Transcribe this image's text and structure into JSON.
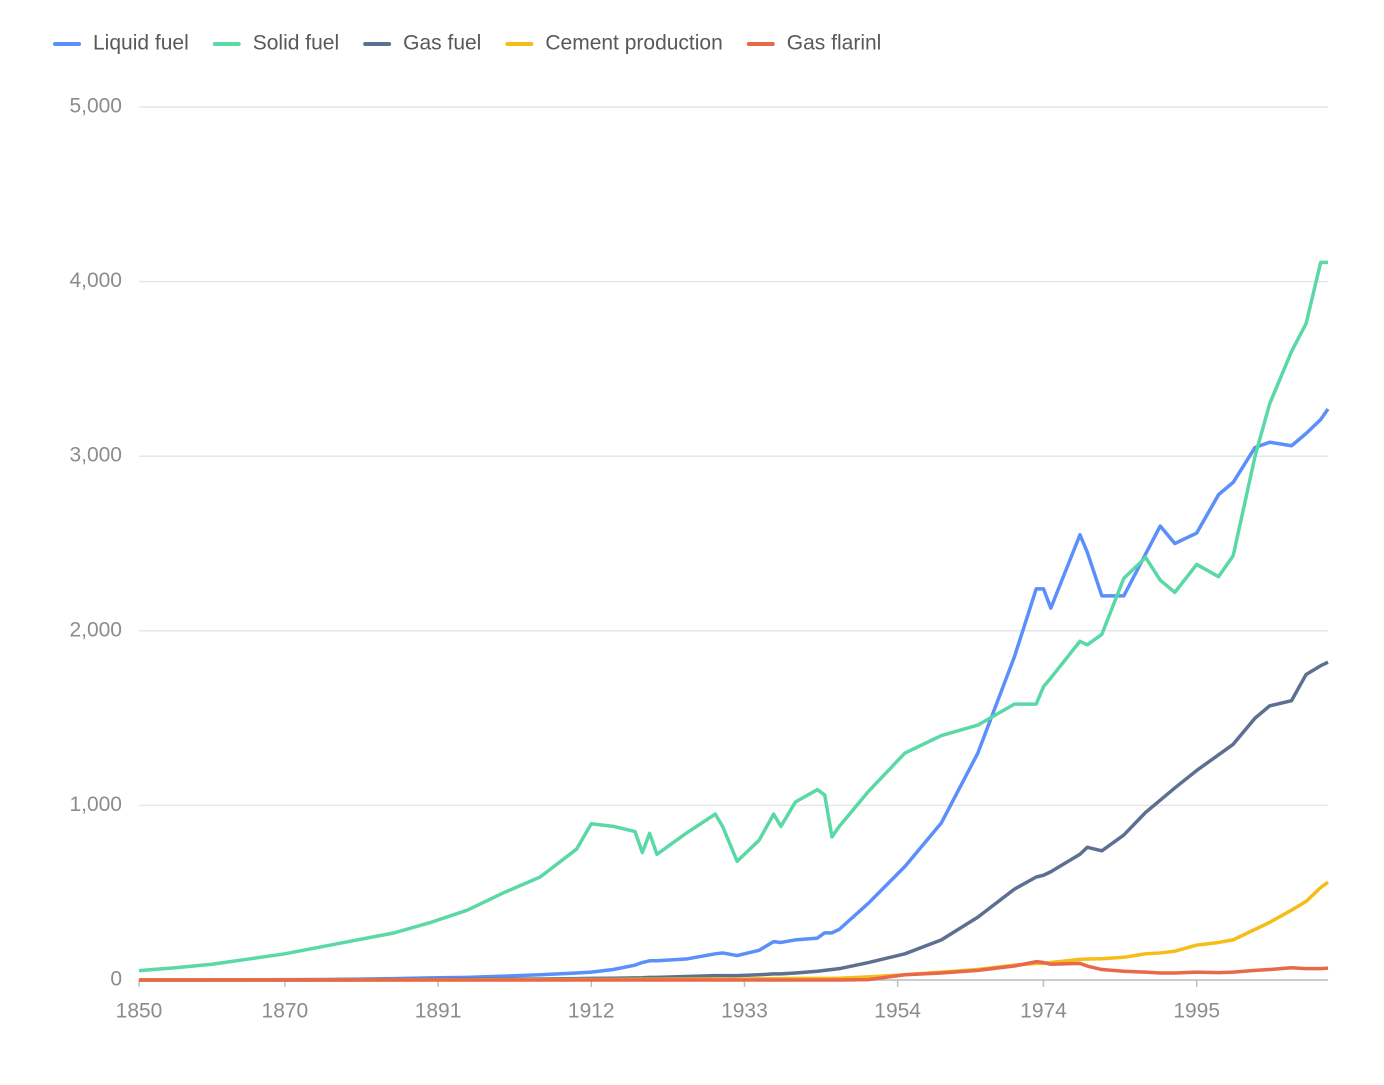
{
  "chart_data": {
    "type": "line",
    "x": [
      1850,
      1855,
      1860,
      1865,
      1870,
      1875,
      1880,
      1885,
      1890,
      1895,
      1900,
      1905,
      1910,
      1912,
      1915,
      1918,
      1919,
      1920,
      1921,
      1925,
      1929,
      1930,
      1932,
      1935,
      1937,
      1938,
      1940,
      1943,
      1944,
      1945,
      1946,
      1950,
      1955,
      1960,
      1965,
      1970,
      1973,
      1974,
      1975,
      1979,
      1980,
      1982,
      1985,
      1988,
      1990,
      1992,
      1995,
      1998,
      2000,
      2003,
      2005,
      2008,
      2010,
      2012,
      2013
    ],
    "series": [
      {
        "name": "Liquid fuel",
        "color": "#5b8ff9",
        "values": [
          0,
          0,
          1,
          1,
          2,
          3,
          5,
          8,
          12,
          15,
          22,
          30,
          40,
          45,
          60,
          85,
          100,
          110,
          110,
          120,
          150,
          155,
          140,
          170,
          220,
          215,
          230,
          240,
          270,
          270,
          290,
          440,
          650,
          900,
          1300,
          1850,
          2240,
          2240,
          2130,
          2550,
          2450,
          2200,
          2200,
          2440,
          2600,
          2500,
          2560,
          2780,
          2850,
          3050,
          3080,
          3060,
          3130,
          3210,
          3270
        ]
      },
      {
        "name": "Solid fuel",
        "color": "#5ad8a6",
        "values": [
          54,
          70,
          90,
          120,
          150,
          190,
          230,
          270,
          330,
          400,
          500,
          590,
          750,
          895,
          880,
          850,
          730,
          840,
          720,
          840,
          950,
          880,
          680,
          800,
          950,
          880,
          1020,
          1090,
          1060,
          820,
          880,
          1080,
          1300,
          1400,
          1460,
          1580,
          1580,
          1680,
          1730,
          1940,
          1920,
          1980,
          2300,
          2420,
          2290,
          2220,
          2380,
          2310,
          2430,
          3000,
          3300,
          3600,
          3760,
          4110,
          4110
        ]
      },
      {
        "name": "Gas fuel",
        "color": "#5d7092",
        "values": [
          0,
          0,
          0,
          0,
          0,
          0,
          1,
          2,
          3,
          4,
          5,
          6,
          8,
          9,
          10,
          12,
          13,
          15,
          15,
          20,
          25,
          25,
          25,
          30,
          35,
          35,
          40,
          50,
          55,
          60,
          65,
          100,
          150,
          230,
          360,
          520,
          590,
          600,
          620,
          720,
          760,
          740,
          830,
          960,
          1030,
          1100,
          1200,
          1290,
          1350,
          1500,
          1570,
          1600,
          1750,
          1800,
          1820
        ]
      },
      {
        "name": "Cement production",
        "color": "#f6bd16",
        "values": [
          0,
          0,
          0,
          0,
          0,
          0,
          0,
          0,
          1,
          1,
          2,
          2,
          3,
          3,
          3,
          4,
          4,
          4,
          4,
          5,
          6,
          6,
          5,
          7,
          8,
          8,
          9,
          9,
          9,
          9,
          10,
          18,
          30,
          45,
          60,
          85,
          95,
          95,
          100,
          118,
          120,
          122,
          130,
          150,
          155,
          165,
          200,
          215,
          230,
          290,
          330,
          400,
          450,
          530,
          560
        ]
      },
      {
        "name": "Gas flarinl",
        "color": "#e8684a",
        "values": [
          0,
          0,
          0,
          0,
          0,
          0,
          0,
          0,
          0,
          0,
          0,
          0,
          0,
          0,
          0,
          0,
          0,
          0,
          0,
          0,
          0,
          0,
          0,
          0,
          0,
          0,
          0,
          0,
          0,
          0,
          0,
          2,
          30,
          40,
          55,
          80,
          105,
          100,
          90,
          95,
          80,
          60,
          50,
          45,
          40,
          40,
          45,
          42,
          45,
          55,
          60,
          70,
          65,
          65,
          68
        ]
      }
    ],
    "xlim": [
      1850,
      2013
    ],
    "xticks": [
      1850,
      1870,
      1891,
      1912,
      1933,
      1954,
      1974,
      1995
    ],
    "ylim": [
      0,
      5000
    ],
    "yticks": [
      0,
      {
        "value": 1000,
        "label": "1,000"
      },
      {
        "value": 2000,
        "label": "2,000"
      },
      {
        "value": 3000,
        "label": "3,000"
      },
      {
        "value": 4000,
        "label": "4,000"
      },
      {
        "value": 5000,
        "label": "5,000"
      }
    ],
    "grid": true,
    "legend": "top-left"
  }
}
